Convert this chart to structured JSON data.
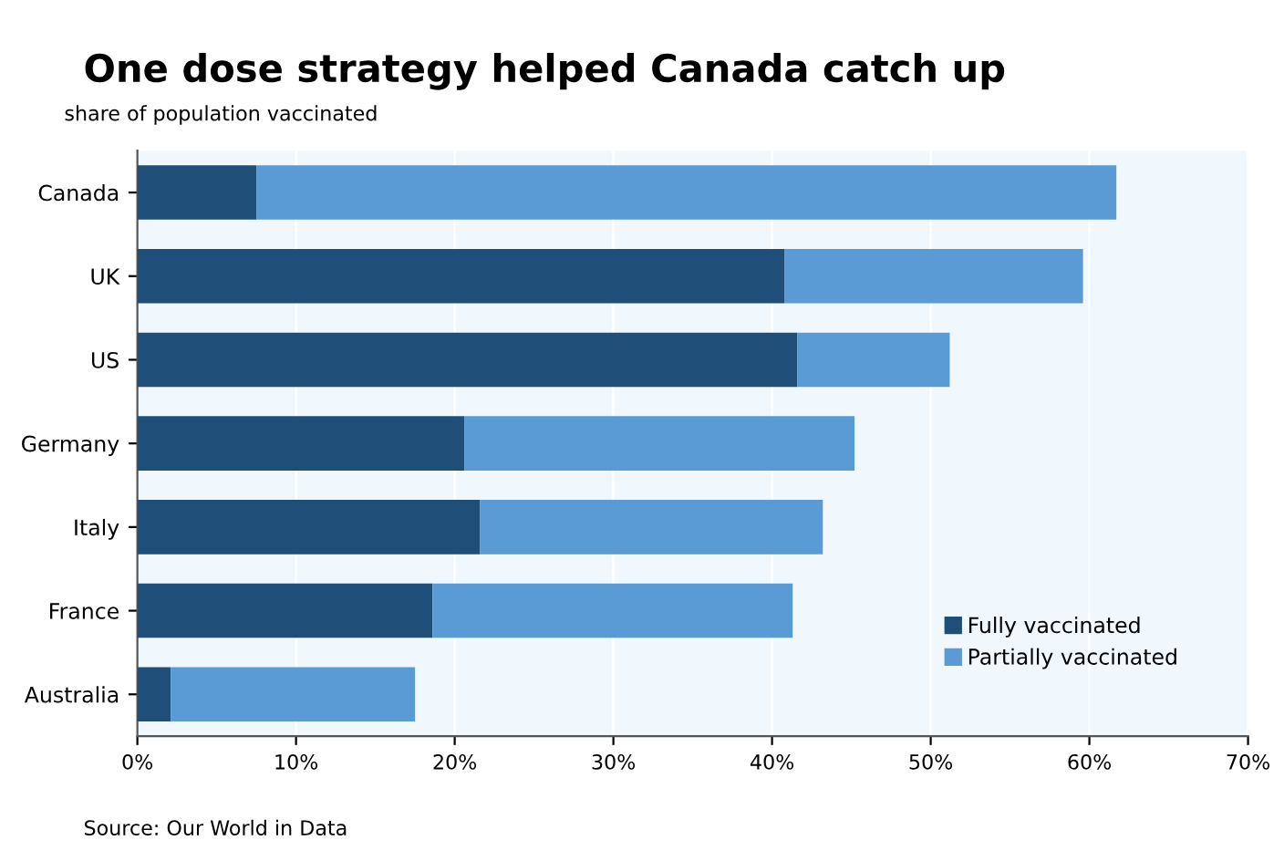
{
  "chart_data": {
    "type": "bar",
    "orientation": "horizontal",
    "stacked": true,
    "title": "One dose strategy helped Canada catch up",
    "subtitle": "share of population vaccinated",
    "categories": [
      "Canada",
      "UK",
      "US",
      "Germany",
      "Italy",
      "France",
      "Australia"
    ],
    "series": [
      {
        "name": "Fully vaccinated",
        "color": "#1f4e79",
        "values": [
          7.5,
          40.8,
          41.6,
          20.6,
          21.6,
          18.6,
          2.1
        ]
      },
      {
        "name": "Partially vaccinated",
        "color": "#5b9bd5",
        "values": [
          54.2,
          18.8,
          9.6,
          24.6,
          21.6,
          22.7,
          15.4
        ]
      }
    ],
    "xlim": [
      0,
      70
    ],
    "xticks": [
      {
        "value": 0,
        "label": "0%"
      },
      {
        "value": 10,
        "label": "10%"
      },
      {
        "value": 20,
        "label": "20%"
      },
      {
        "value": 30,
        "label": "30%"
      },
      {
        "value": 40,
        "label": "40%"
      },
      {
        "value": 50,
        "label": "50%"
      },
      {
        "value": 60,
        "label": "60%"
      },
      {
        "value": 70,
        "label": "70%"
      }
    ],
    "grid": "x",
    "legend": "bottom right",
    "annotations": [
      "Source: Our World in Data"
    ]
  }
}
